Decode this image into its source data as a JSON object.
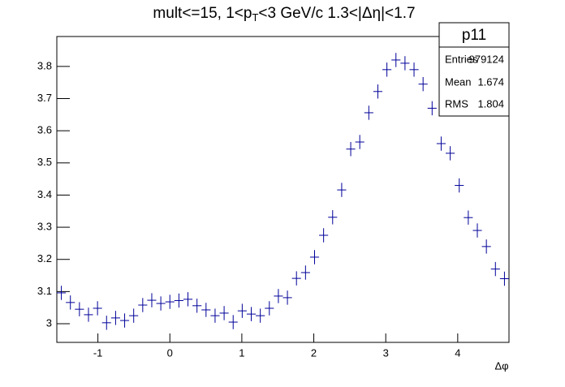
{
  "chart_data": {
    "type": "errorbar",
    "title_parts": [
      "mult<=15, 1<p",
      "T",
      "<3 GeV/c 1.3<|Δη|<1.7"
    ],
    "xlabel": "Δφ",
    "x": [
      -1.508,
      -1.3823,
      -1.2566,
      -1.131,
      -1.0053,
      -0.8796,
      -0.754,
      -0.6283,
      -0.5027,
      -0.377,
      -0.2513,
      -0.1257,
      0.0,
      0.1257,
      0.2513,
      0.377,
      0.5027,
      0.6283,
      0.754,
      0.8796,
      1.0053,
      1.131,
      1.2566,
      1.3823,
      1.508,
      1.6336,
      1.7593,
      1.885,
      2.0106,
      2.1363,
      2.2619,
      2.3876,
      2.5133,
      2.6389,
      2.7646,
      2.8903,
      3.0159,
      3.1416,
      3.2673,
      3.3929,
      3.5186,
      3.6442,
      3.7699,
      3.8956,
      4.0212,
      4.1469,
      4.2726,
      4.3982,
      4.5239,
      4.6496
    ],
    "values": [
      3.096,
      3.066,
      3.045,
      3.028,
      3.048,
      3.003,
      3.018,
      3.01,
      3.025,
      3.058,
      3.073,
      3.063,
      3.068,
      3.072,
      3.076,
      3.056,
      3.043,
      3.025,
      3.033,
      3.005,
      3.04,
      3.03,
      3.025,
      3.048,
      3.086,
      3.081,
      3.141,
      3.159,
      3.207,
      3.275,
      3.331,
      3.416,
      3.543,
      3.565,
      3.656,
      3.722,
      3.79,
      3.82,
      3.81,
      3.79,
      3.745,
      3.67,
      3.56,
      3.53,
      3.43,
      3.33,
      3.29,
      3.24,
      3.17,
      3.14
    ],
    "xerr": 0.0628,
    "yerr": 0.022,
    "color": "#000099",
    "xlim": [
      -1.5708,
      4.7124
    ],
    "ylim": [
      2.942,
      3.893
    ],
    "xticks": [
      -1,
      0,
      1,
      2,
      3,
      4
    ],
    "yticks": [
      3,
      3.1,
      3.2,
      3.3,
      3.4,
      3.5,
      3.6,
      3.7,
      3.8
    ],
    "stats": {
      "name": "p11",
      "rows": [
        [
          "Entries",
          "979124"
        ],
        [
          "Mean",
          "1.674"
        ],
        [
          "RMS",
          "1.804"
        ]
      ]
    }
  }
}
